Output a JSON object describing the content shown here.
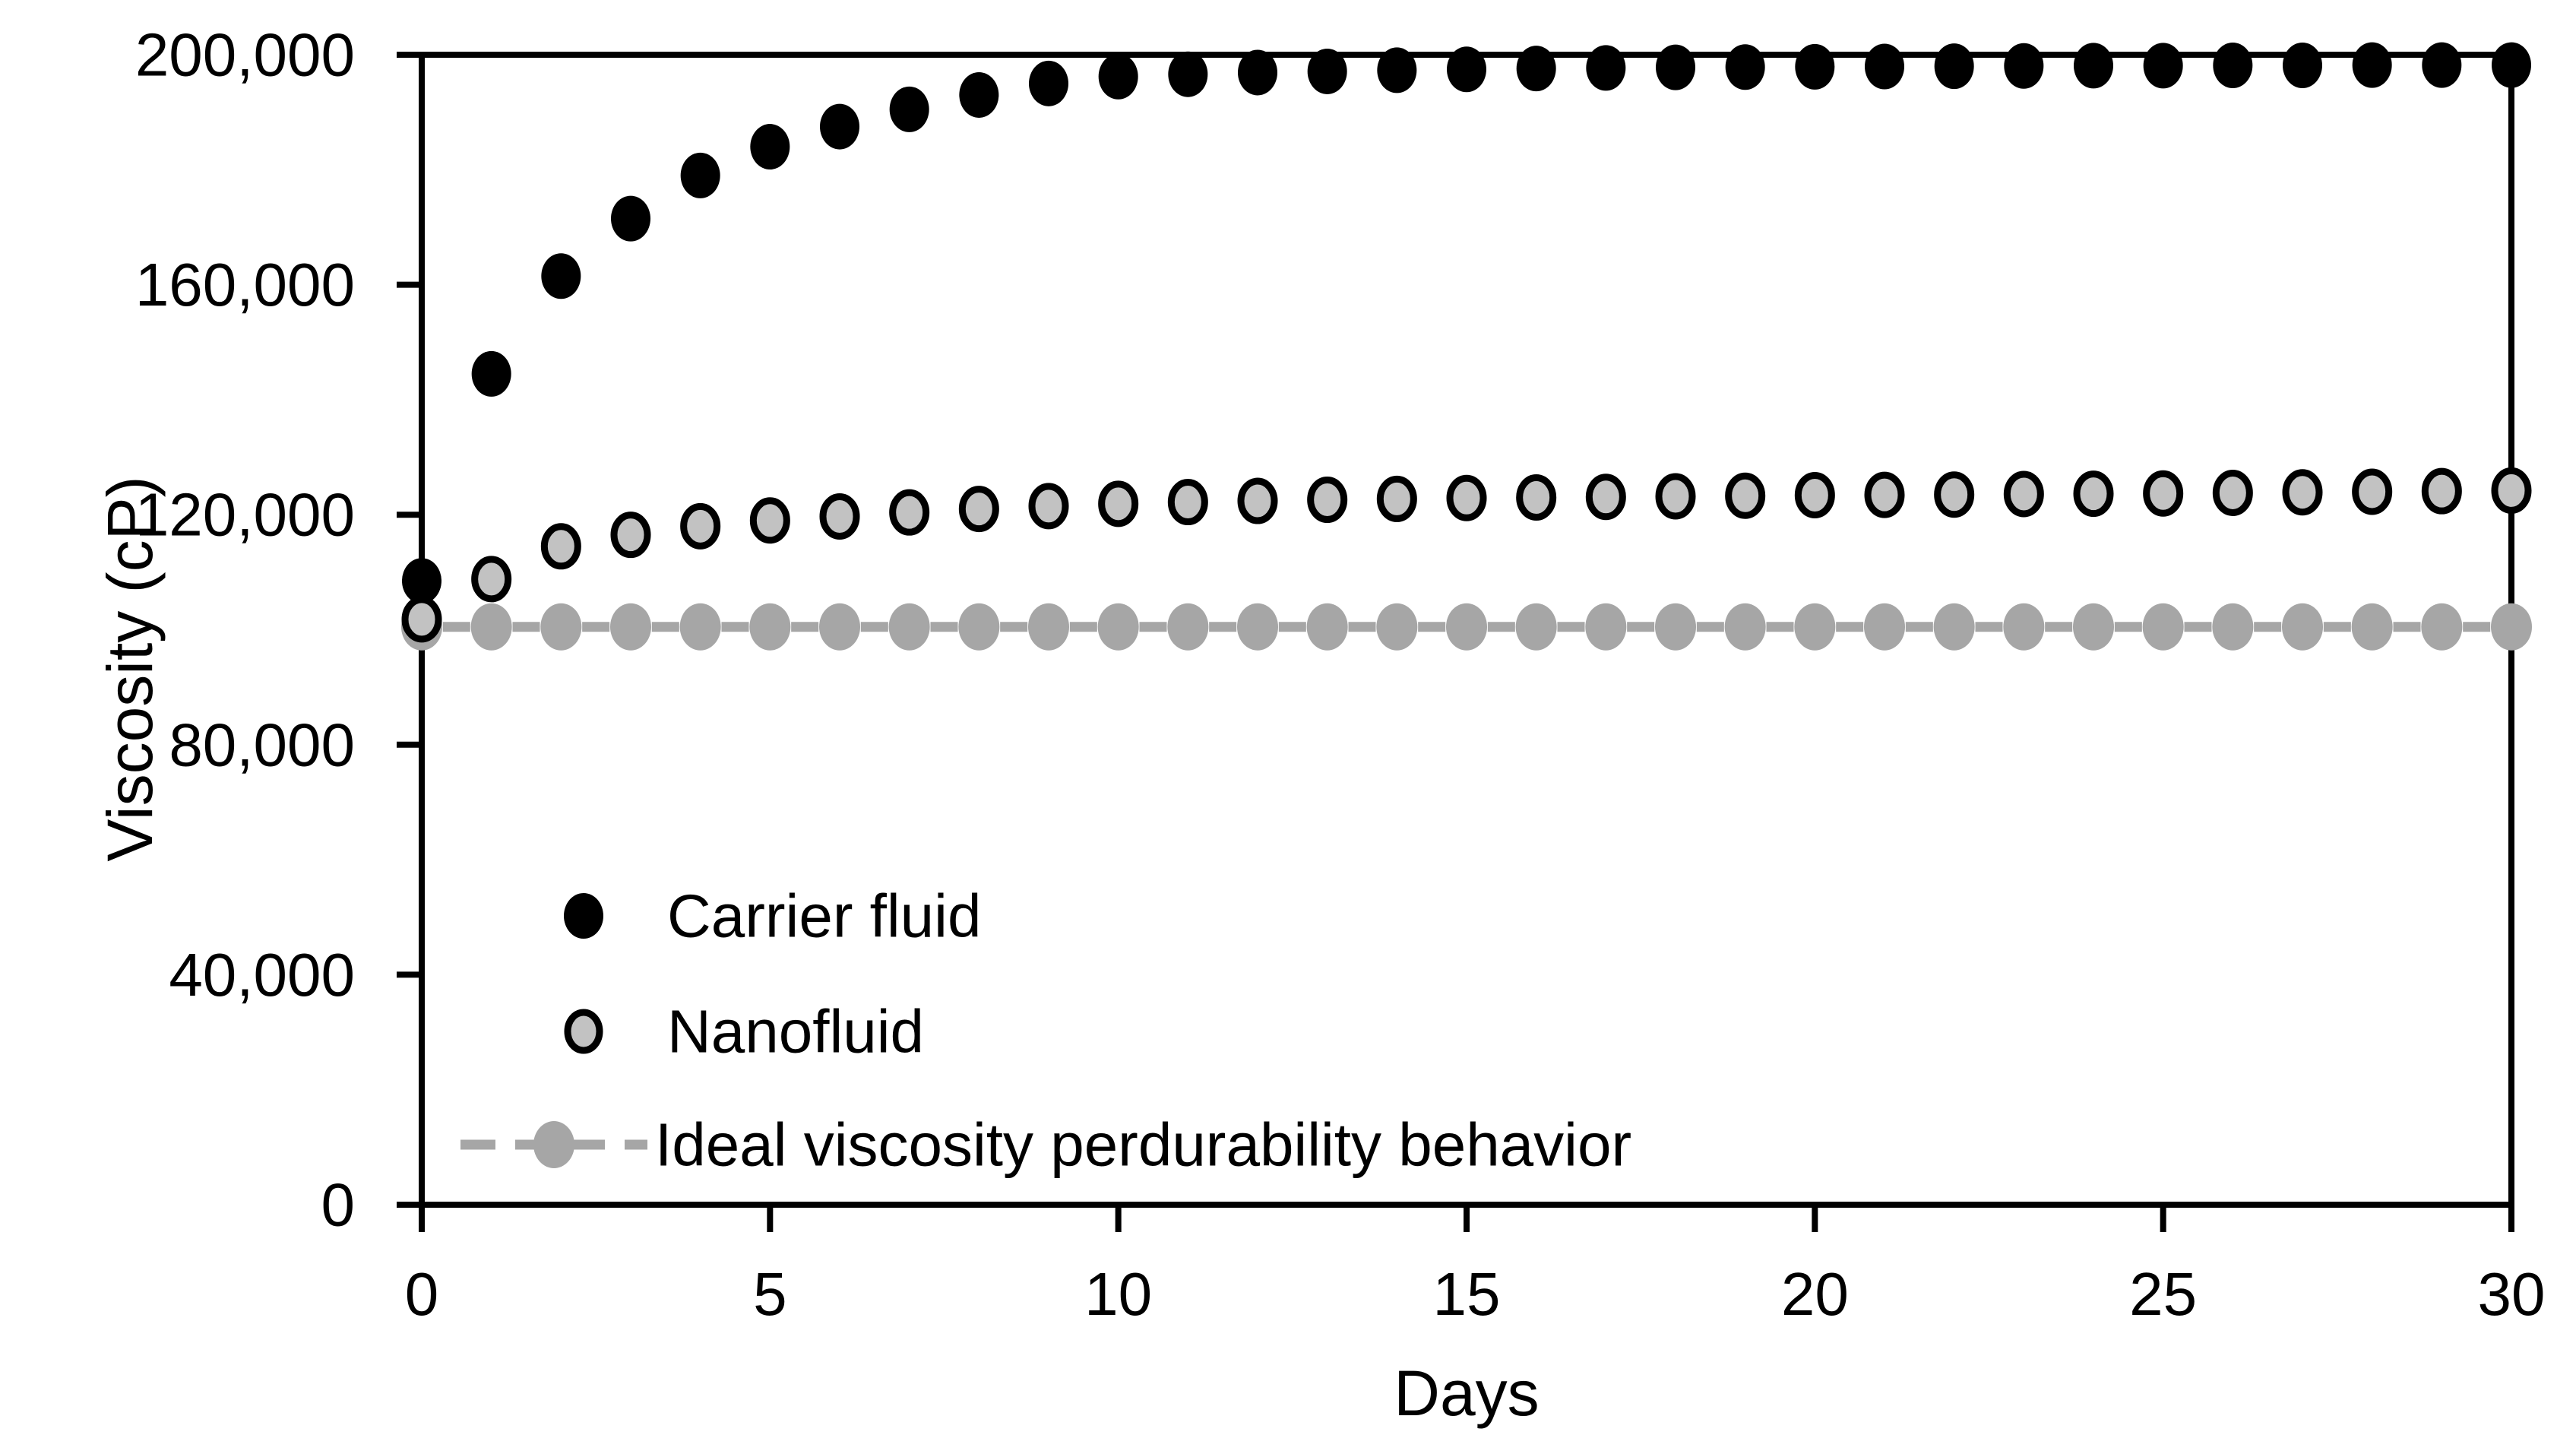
{
  "figure": {
    "background_color": "#ffffff",
    "text_color": "#000000"
  },
  "chart_data": {
    "type": "scatter",
    "title": "",
    "xlabel": "Days",
    "ylabel": "Viscosity (cP)",
    "xlim": [
      0,
      30
    ],
    "ylim": [
      0,
      200000
    ],
    "x_ticks": [
      0,
      5,
      10,
      15,
      20,
      25,
      30
    ],
    "x_tick_labels": [
      "0",
      "5",
      "10",
      "15",
      "20",
      "25",
      "30"
    ],
    "y_ticks": [
      0,
      40000,
      80000,
      120000,
      160000,
      200000
    ],
    "y_tick_labels": [
      "0",
      "40,000",
      "80,000",
      "120,000",
      "160,000",
      "200,000"
    ],
    "grid": false,
    "plot_border": true,
    "legend_position": "inside-lower-left",
    "x": [
      0,
      1,
      2,
      3,
      4,
      5,
      6,
      7,
      8,
      9,
      10,
      11,
      12,
      13,
      14,
      15,
      16,
      17,
      18,
      19,
      20,
      21,
      22,
      23,
      24,
      25,
      26,
      27,
      28,
      29,
      30
    ],
    "series": [
      {
        "name": "Carrier fluid",
        "marker": "filled-circle",
        "color": "#000000",
        "line": "none",
        "values": [
          108500,
          144500,
          161500,
          171500,
          179000,
          184000,
          187500,
          190500,
          193000,
          195000,
          196200,
          196600,
          196900,
          197100,
          197300,
          197450,
          197600,
          197700,
          197800,
          197850,
          197900,
          197950,
          198000,
          198050,
          198100,
          198100,
          198150,
          198150,
          198200,
          198200,
          198200
        ]
      },
      {
        "name": "Nanofluid",
        "marker": "open-circle",
        "fill_color": "#c2c2c2",
        "edge_color": "#000000",
        "line": "none",
        "values": [
          101800,
          108800,
          114500,
          116500,
          118000,
          119000,
          119700,
          120400,
          121000,
          121500,
          121900,
          122200,
          122400,
          122600,
          122750,
          122900,
          123000,
          123100,
          123200,
          123300,
          123400,
          123450,
          123500,
          123600,
          123650,
          123700,
          123800,
          123900,
          124000,
          124100,
          124200
        ]
      },
      {
        "name": "Ideal viscosity perdurability behavior",
        "marker": "filled-circle",
        "color": "#a6a6a6",
        "line": "dashed",
        "values": [
          100500,
          100500,
          100500,
          100500,
          100500,
          100500,
          100500,
          100500,
          100500,
          100500,
          100500,
          100500,
          100500,
          100500,
          100500,
          100500,
          100500,
          100500,
          100500,
          100500,
          100500,
          100500,
          100500,
          100500,
          100500,
          100500,
          100500,
          100500,
          100500,
          100500,
          100500
        ]
      }
    ]
  }
}
